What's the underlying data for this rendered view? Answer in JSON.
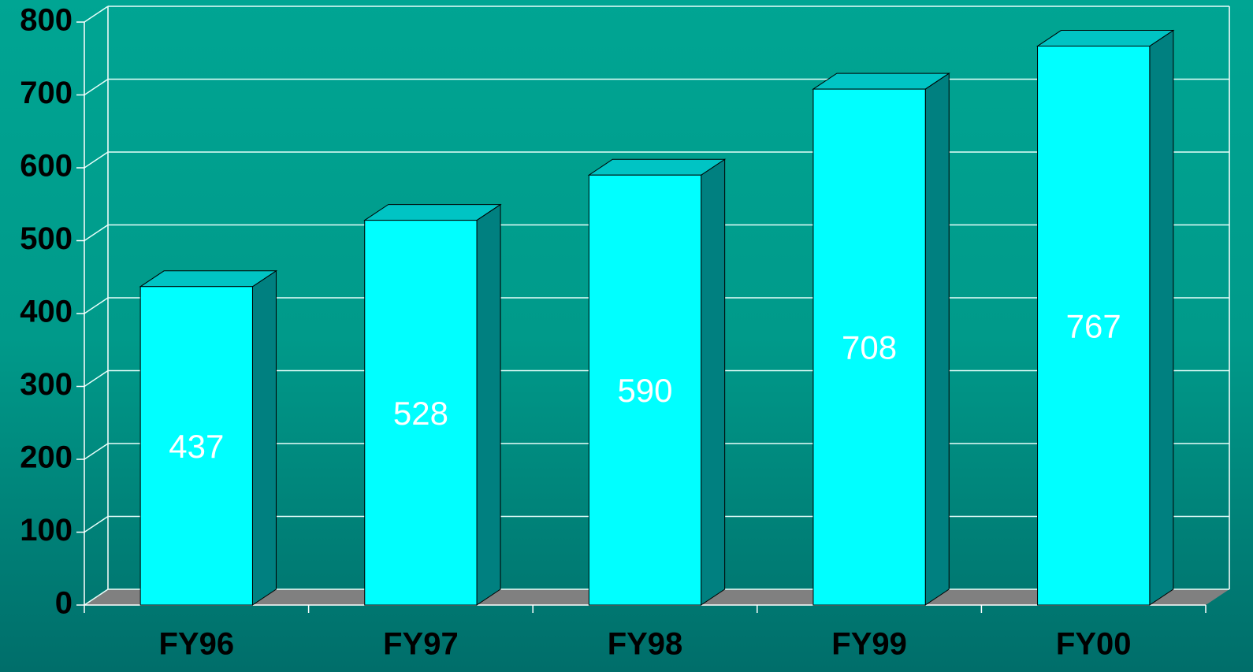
{
  "chart_data": {
    "type": "bar",
    "categories": [
      "FY96",
      "FY97",
      "FY98",
      "FY99",
      "FY00"
    ],
    "values": [
      437,
      528,
      590,
      708,
      767
    ],
    "color": "#00ffff",
    "ylim": [
      0,
      800
    ],
    "yticks": [
      0,
      100,
      200,
      300,
      400,
      500,
      600,
      700,
      800
    ],
    "grid": true
  }
}
